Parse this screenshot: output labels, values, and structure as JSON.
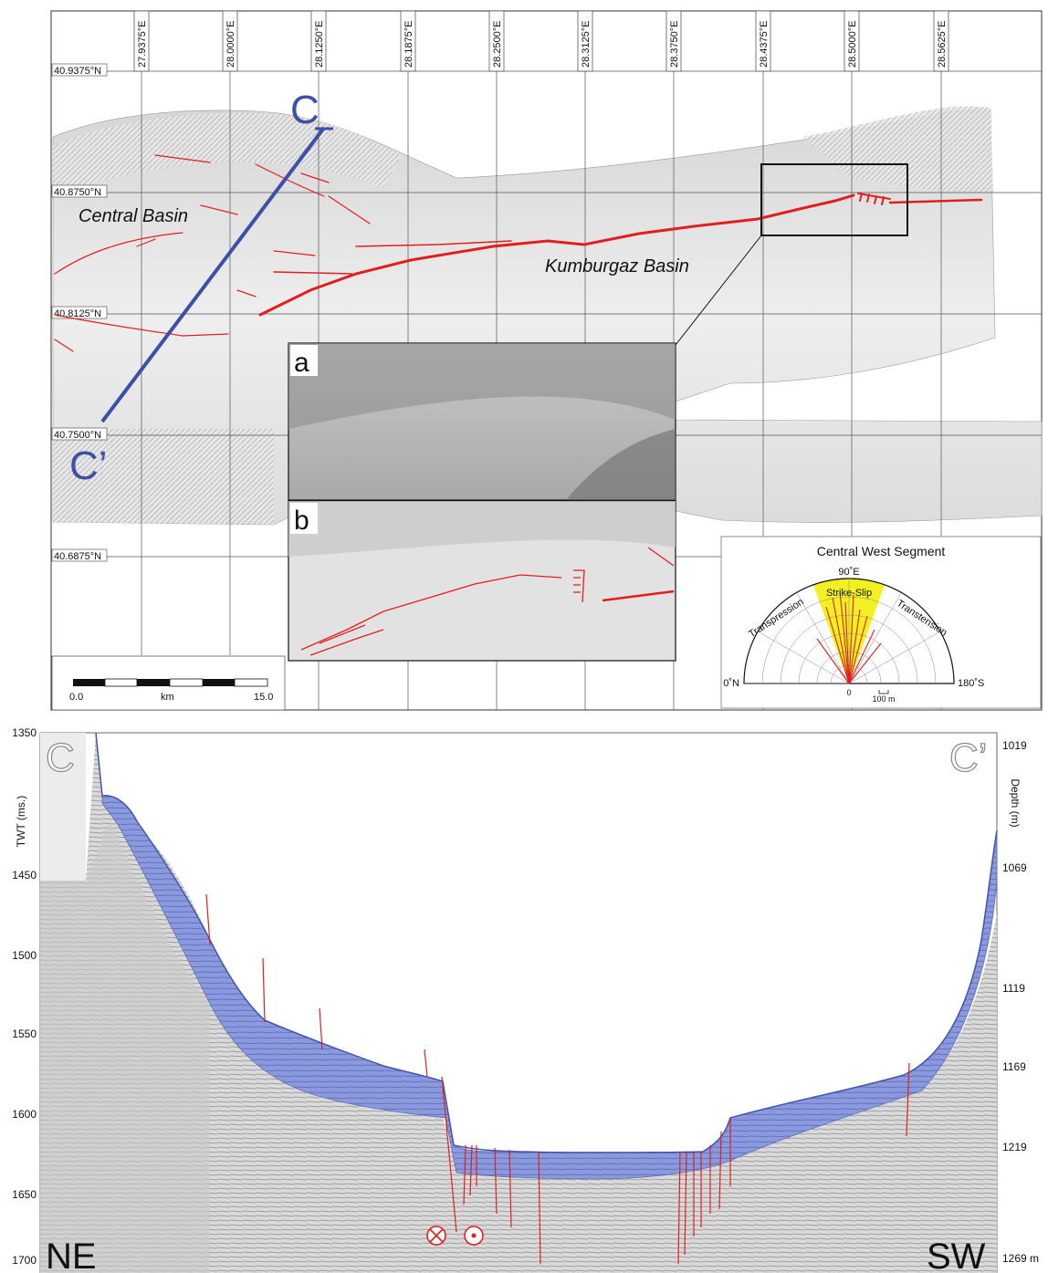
{
  "map": {
    "lon_labels": [
      "27.9375°E",
      "28.0000°E",
      "28.1250°E",
      "28.1875°E",
      "28.2500°E",
      "28.3125°E",
      "28.3750°E",
      "28.4375°E",
      "28.5000°E",
      "28.5625°E"
    ],
    "lat_labels": [
      "40.9375°N",
      "40.8750°N",
      "40.8125°N",
      "40.7500°N",
      "40.6875°N"
    ],
    "basin_labels": {
      "central": "Central Basin",
      "kumburgaz": "Kumburgaz Basin"
    },
    "profile_labels": {
      "start": "C",
      "end": "C’"
    },
    "inset_labels": {
      "a": "a",
      "b": "b"
    },
    "scale_bar": {
      "start": "0.0",
      "unit": "km",
      "end": "15.0"
    },
    "colors": {
      "fault": "#e01f1f",
      "profile": "#3d4fa6",
      "sediment": "#7f8fd4",
      "strike_slip": "#f2f021"
    }
  },
  "rose": {
    "title": "Central West Segment",
    "top": "90˚E",
    "left": "0˚N",
    "right": "180˚S",
    "center": "0",
    "scale": "100 m",
    "sectors": {
      "transpression": "Transpression",
      "strike_slip": "Strike-Slip",
      "transtension": "Transtension"
    }
  },
  "seismic": {
    "left_axis_title": "TWT (ms.)",
    "left_ticks": [
      "1350",
      "1450",
      "1500",
      "1550",
      "1600",
      "1650",
      "1700"
    ],
    "right_axis_title": "Depth (m)",
    "right_ticks": [
      "1019",
      "1069",
      "1119",
      "1169",
      "1219",
      "1269 m"
    ],
    "corner_labels": {
      "left": "NE",
      "right": "SW"
    },
    "profile_labels": {
      "start": "C",
      "end": "C’"
    }
  }
}
